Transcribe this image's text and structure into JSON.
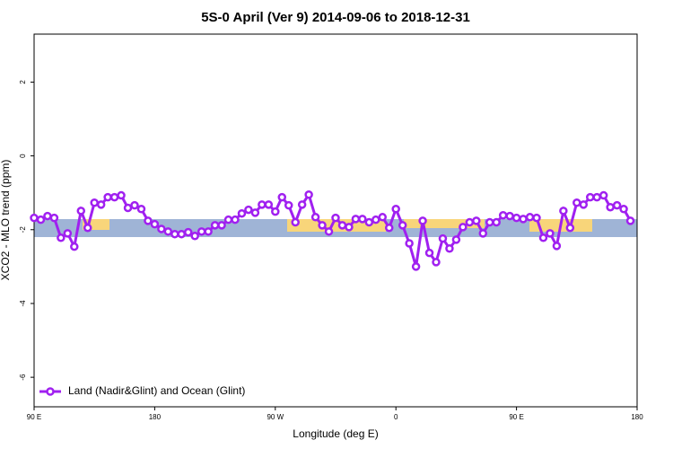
{
  "chart_data": {
    "type": "line",
    "title": "5S-0 April (Ver 9)   2014-09-06 to 2018-12-31",
    "x_label": "Longitude (deg E)",
    "y_label": "XCO2 - MLO trend (ppm)",
    "x": [
      90,
      95,
      100,
      105,
      110,
      115,
      120,
      125,
      130,
      135,
      140,
      145,
      150,
      155,
      160,
      165,
      170,
      175,
      180,
      185,
      190,
      195,
      200,
      205,
      210,
      215,
      220,
      225,
      230,
      235,
      240,
      245,
      250,
      255,
      260,
      265,
      270,
      275,
      280,
      285,
      290,
      295,
      300,
      305,
      310,
      315,
      320,
      325,
      330,
      335,
      340,
      345,
      350,
      355,
      360,
      365,
      370,
      375,
      380,
      385,
      390,
      395,
      400,
      405,
      410,
      415,
      420,
      425,
      430,
      435,
      440,
      445,
      450,
      455,
      460,
      465,
      470,
      475,
      480,
      485,
      490,
      495,
      500,
      505,
      510,
      515,
      520,
      525,
      530,
      535
    ],
    "series": [
      {
        "name": "Land (Nadir&Glint) and Ocean (Glint)",
        "color": "#a020f0",
        "values": [
          -1.68,
          -1.73,
          -1.63,
          -1.68,
          -2.22,
          -2.1,
          -2.46,
          -1.49,
          -1.95,
          -1.27,
          -1.32,
          -1.12,
          -1.12,
          -1.07,
          -1.41,
          -1.34,
          -1.44,
          -1.76,
          -1.85,
          -1.98,
          -2.05,
          -2.12,
          -2.12,
          -2.07,
          -2.17,
          -2.05,
          -2.05,
          -1.88,
          -1.88,
          -1.73,
          -1.73,
          -1.56,
          -1.46,
          -1.54,
          -1.32,
          -1.32,
          -1.51,
          -1.12,
          -1.34,
          -1.8,
          -1.32,
          -1.05,
          -1.66,
          -1.88,
          -2.05,
          -1.68,
          -1.88,
          -1.93,
          -1.71,
          -1.71,
          -1.8,
          -1.73,
          -1.66,
          -1.95,
          -1.44,
          -1.88,
          -2.37,
          -3.0,
          -1.76,
          -2.63,
          -2.88,
          -2.24,
          -2.51,
          -2.27,
          -1.93,
          -1.8,
          -1.76,
          -2.1,
          -1.8,
          -1.8,
          -1.61,
          -1.63,
          -1.68,
          -1.71,
          -1.66,
          -1.68,
          -2.22,
          -2.1,
          -2.44,
          -1.49,
          -1.95,
          -1.27,
          -1.32,
          -1.12,
          -1.12,
          -1.07,
          -1.39,
          -1.34,
          -1.44,
          -1.76
        ]
      }
    ],
    "xlim": [
      90,
      540
    ],
    "xticks": [
      {
        "value": 90,
        "label": "90 E"
      },
      180,
      {
        "value": 270,
        "label": "90 W"
      },
      {
        "value": 360,
        "label": "0"
      },
      {
        "value": 450,
        "label": "90 E"
      },
      {
        "value": 540,
        "label": "180"
      }
    ],
    "ylim": [
      -6.8,
      3.3
    ],
    "yticks": [
      2,
      0,
      -2,
      -4,
      -6
    ],
    "legend": "bottom-left"
  }
}
